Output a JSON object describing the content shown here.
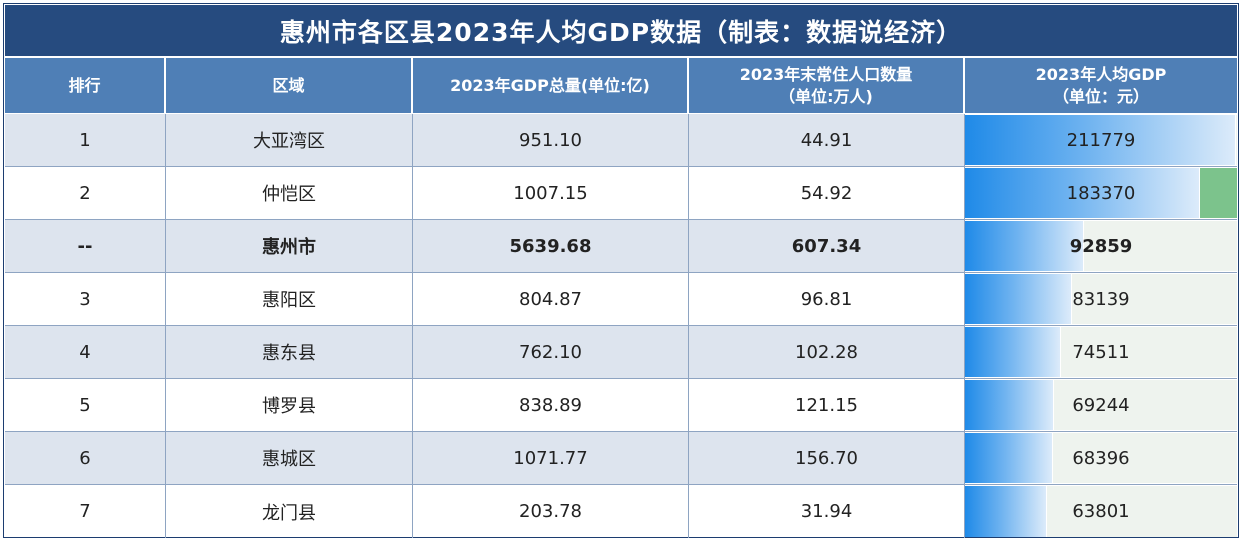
{
  "title": "惠州市各区县2023年人均GDP数据（制表：数据说经济）",
  "headers": {
    "rank": [
      "排行"
    ],
    "region": [
      "区域"
    ],
    "gdp": [
      "2023年GDP总量(单位:亿)"
    ],
    "population": [
      "2023年末常住人口数量",
      "（单位:万人)"
    ],
    "per_capita": [
      "2023年人均GDP",
      "（单位：元）"
    ]
  },
  "chart_data": {
    "type": "table",
    "title": "惠州市各区县2023年人均GDP数据（制表：数据说经济）",
    "columns": [
      "排行",
      "区域",
      "2023年GDP总量(单位:亿)",
      "2023年末常住人口数量（单位:万人)",
      "2023年人均GDP（单位：元）"
    ],
    "rows": [
      {
        "rank": "1",
        "region": "大亚湾区",
        "gdp": "951.10",
        "population": "44.91",
        "per_capita": 211779
      },
      {
        "rank": "2",
        "region": "仲恺区",
        "gdp": "1007.15",
        "population": "54.92",
        "per_capita": 183370
      },
      {
        "rank": "--",
        "region": "惠州市",
        "gdp": "5639.68",
        "population": "607.34",
        "per_capita": 92859
      },
      {
        "rank": "3",
        "region": "惠阳区",
        "gdp": "804.87",
        "population": "96.81",
        "per_capita": 83139
      },
      {
        "rank": "4",
        "region": "惠东县",
        "gdp": "762.10",
        "population": "102.28",
        "per_capita": 74511
      },
      {
        "rank": "5",
        "region": "博罗县",
        "gdp": "838.89",
        "population": "121.15",
        "per_capita": 69244
      },
      {
        "rank": "6",
        "region": "惠城区",
        "gdp": "1071.77",
        "population": "156.70",
        "per_capita": 68396
      },
      {
        "rank": "7",
        "region": "龙门县",
        "gdp": "203.78",
        "population": "31.94",
        "per_capita": 63801
      }
    ],
    "data_bar_column": "per_capita",
    "data_bar_max": 211779,
    "highlight_row": 2,
    "colors": {
      "title_bg": "#264b7f",
      "header_bg": "#4f7fb6",
      "alt_row_bg": "#dde4ee",
      "bar_color": "#1f8ae8",
      "negative_space_green": "#7cc38c"
    }
  }
}
